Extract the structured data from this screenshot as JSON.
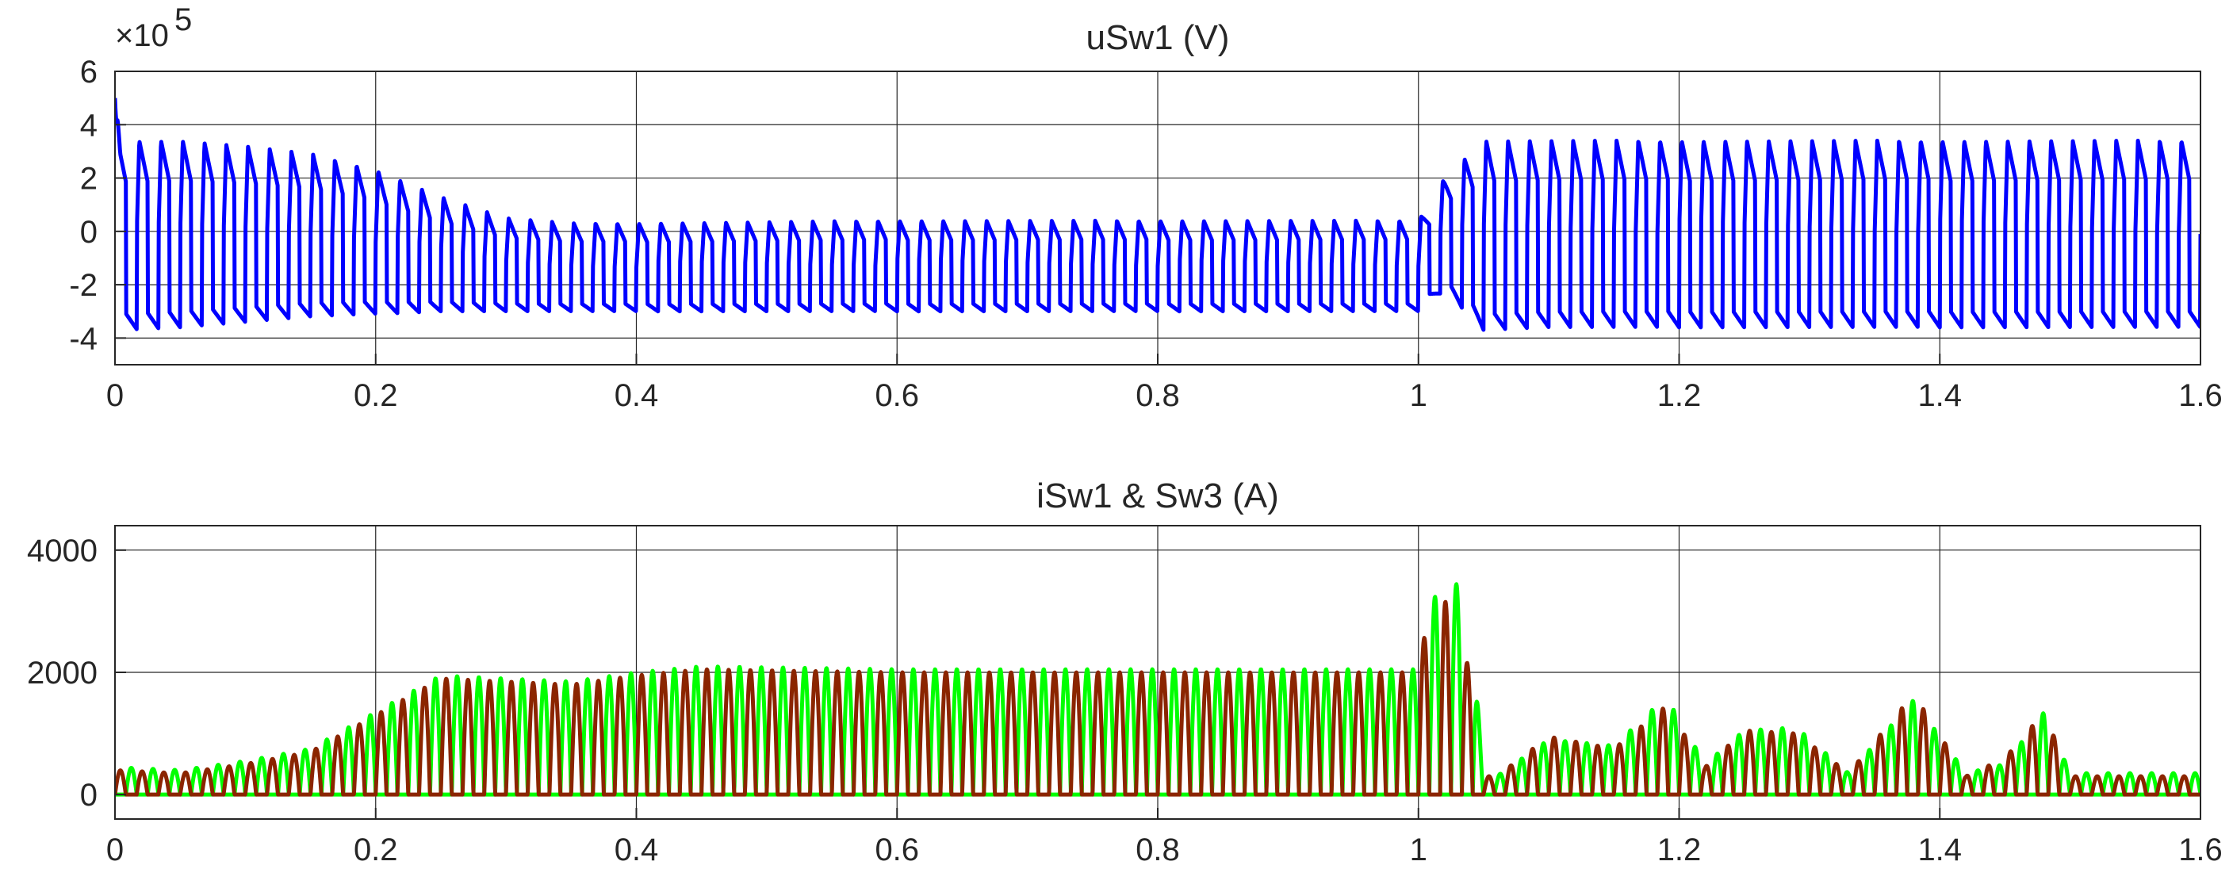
{
  "chart_data": [
    {
      "type": "line",
      "title": "uSw1 (V)",
      "xlabel": "",
      "ylabel": "",
      "exponent_base": "×10",
      "exponent_power": "5",
      "xlim": [
        0,
        1.6
      ],
      "ylim": [
        -5,
        6
      ],
      "x_ticks": [
        0,
        0.2,
        0.4,
        0.6,
        0.8,
        1,
        1.2,
        1.4,
        1.6
      ],
      "x_tick_labels": [
        "0",
        "0.2",
        "0.4",
        "0.6",
        "0.8",
        "1",
        "1.2",
        "1.4",
        "1.6"
      ],
      "y_ticks": [
        -4,
        -2,
        0,
        2,
        4,
        6
      ],
      "y_tick_labels": [
        "-4",
        "-2",
        "0",
        "2",
        "4",
        "6"
      ],
      "grid": true,
      "series": [
        {
          "color": "#0000ff",
          "frequency_hz": 60,
          "x": [
            0,
            0.05,
            0.1,
            0.15,
            0.2,
            0.25,
            0.3,
            0.35,
            0.4,
            0.6,
            0.8,
            1.0,
            1.02,
            1.05,
            1.1,
            1.2,
            1.3,
            1.4,
            1.5,
            1.6
          ],
          "upper_envelope": [
            3.4,
            3.4,
            3.2,
            2.9,
            2.3,
            1.3,
            0.5,
            0.3,
            0.3,
            0.4,
            0.4,
            0.4,
            2.0,
            3.4,
            3.4,
            3.4,
            3.4,
            3.4,
            3.4,
            3.4
          ],
          "lower_envelope": [
            -3.7,
            -3.6,
            -3.4,
            -3.2,
            -3.1,
            -3.0,
            -3.0,
            -3.0,
            -3.0,
            -3.0,
            -3.0,
            -3.0,
            -2.2,
            -3.7,
            -3.6,
            -3.6,
            -3.6,
            -3.6,
            -3.6,
            -3.6
          ],
          "initial_spike": 5.0
        }
      ]
    },
    {
      "type": "line",
      "title": "iSw1 & Sw3 (A)",
      "xlabel": "",
      "ylabel": "",
      "xlim": [
        0,
        1.6
      ],
      "ylim": [
        -400,
        4400
      ],
      "x_ticks": [
        0,
        0.2,
        0.4,
        0.6,
        0.8,
        1,
        1.2,
        1.4,
        1.6
      ],
      "x_tick_labels": [
        "0",
        "0.2",
        "0.4",
        "0.6",
        "0.8",
        "1",
        "1.2",
        "1.4",
        "1.6"
      ],
      "y_ticks": [
        0,
        2000,
        4000
      ],
      "y_tick_labels": [
        "0",
        "2000",
        "4000"
      ],
      "grid": true,
      "series": [
        {
          "color": "#00ff00",
          "frequency_hz": 60,
          "phase_offset_s": 0.0083,
          "x": [
            0,
            0.05,
            0.1,
            0.15,
            0.2,
            0.25,
            0.3,
            0.35,
            0.4,
            0.45,
            0.6,
            0.8,
            1.0,
            1.01,
            1.02,
            1.04,
            1.05,
            1.06,
            1.1,
            1.15,
            1.19,
            1.22,
            1.25,
            1.29,
            1.33,
            1.38,
            1.42,
            1.45,
            1.48,
            1.5,
            1.6
          ],
          "peak": [
            450,
            400,
            550,
            750,
            1350,
            1950,
            1900,
            1850,
            2000,
            2100,
            2050,
            2050,
            2050,
            3000,
            3900,
            2900,
            300,
            300,
            900,
            800,
            1600,
            500,
            1050,
            1100,
            350,
            1550,
            350,
            500,
            1350,
            350,
            350
          ]
        },
        {
          "color": "#8b2500",
          "frequency_hz": 60,
          "phase_offset_s": 0,
          "x": [
            0,
            0.05,
            0.1,
            0.15,
            0.2,
            0.25,
            0.3,
            0.35,
            0.4,
            0.45,
            0.6,
            0.8,
            1.0,
            1.01,
            1.02,
            1.04,
            1.05,
            1.06,
            1.1,
            1.15,
            1.19,
            1.22,
            1.25,
            1.29,
            1.33,
            1.38,
            1.42,
            1.45,
            1.48,
            1.5,
            1.6
          ],
          "peak": [
            400,
            350,
            500,
            700,
            1300,
            1900,
            1850,
            1800,
            1950,
            2050,
            2000,
            2000,
            2000,
            3300,
            3200,
            2000,
            300,
            300,
            950,
            750,
            1450,
            450,
            1050,
            1000,
            350,
            1650,
            300,
            600,
            1350,
            300,
            300
          ]
        }
      ]
    }
  ]
}
